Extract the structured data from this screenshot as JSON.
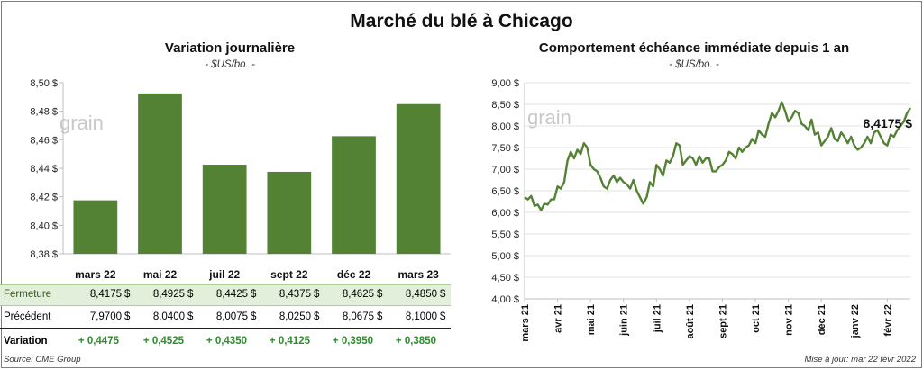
{
  "title": "Marché du blé à Chicago",
  "watermark": "grain",
  "colors": {
    "bar": "#548235",
    "line": "#548235",
    "close_row_bg": "#e2efda",
    "positive": "#2e8b2e"
  },
  "chart_data": [
    {
      "type": "bar",
      "title": "Variation journalière",
      "subtitle": "- $US/bo. -",
      "categories": [
        "mars 22",
        "mai 22",
        "juil 22",
        "sept 22",
        "déc 22",
        "mars 23"
      ],
      "values": [
        8.4175,
        8.4925,
        8.4425,
        8.4375,
        8.4625,
        8.485
      ],
      "ylim": [
        8.38,
        8.5
      ],
      "yticks": [
        "8,38 $",
        "8,40 $",
        "8,42 $",
        "8,44 $",
        "8,46 $",
        "8,48 $",
        "8,50 $"
      ],
      "ytick_values": [
        8.38,
        8.4,
        8.42,
        8.44,
        8.46,
        8.48,
        8.5
      ],
      "grid": false
    },
    {
      "type": "line",
      "title": "Comportement échéance immédiate depuis 1 an",
      "subtitle": "- $US/bo. -",
      "xticks": [
        "mars 21",
        "avr 21",
        "mai 21",
        "juin 21",
        "juil 21",
        "août 21",
        "sept 21",
        "oct 21",
        "nov 21",
        "déc 21",
        "janv 22",
        "févr 22"
      ],
      "xlim": [
        0,
        11.7
      ],
      "ylim": [
        4.0,
        9.0
      ],
      "yticks": [
        "4,00 $",
        "4,50 $",
        "5,00 $",
        "5,50 $",
        "6,00 $",
        "6,50 $",
        "7,00 $",
        "7,50 $",
        "8,00 $",
        "8,50 $",
        "9,00 $"
      ],
      "ytick_values": [
        4.0,
        4.5,
        5.0,
        5.5,
        6.0,
        6.5,
        7.0,
        7.5,
        8.0,
        8.5,
        9.0
      ],
      "grid": true,
      "last_label": "8,4175 $",
      "series": [
        {
          "x": [
            0,
            0.1,
            0.2,
            0.3,
            0.4,
            0.5,
            0.6,
            0.7,
            0.8,
            0.9,
            1.0,
            1.1,
            1.2,
            1.3,
            1.4,
            1.5,
            1.6,
            1.7,
            1.8,
            1.9,
            2.0,
            2.1,
            2.2,
            2.3,
            2.4,
            2.5,
            2.6,
            2.7,
            2.8,
            2.9,
            3.0,
            3.1,
            3.2,
            3.3,
            3.4,
            3.5,
            3.6,
            3.7,
            3.8,
            3.9,
            4.0,
            4.1,
            4.2,
            4.3,
            4.4,
            4.5,
            4.6,
            4.7,
            4.8,
            4.9,
            5.0,
            5.1,
            5.2,
            5.3,
            5.4,
            5.5,
            5.6,
            5.7,
            5.8,
            5.9,
            6.0,
            6.1,
            6.2,
            6.3,
            6.4,
            6.5,
            6.6,
            6.7,
            6.8,
            6.9,
            7.0,
            7.1,
            7.2,
            7.3,
            7.4,
            7.5,
            7.6,
            7.7,
            7.8,
            7.9,
            8.0,
            8.1,
            8.2,
            8.3,
            8.4,
            8.5,
            8.6,
            8.7,
            8.8,
            8.9,
            9.0,
            9.1,
            9.2,
            9.3,
            9.4,
            9.5,
            9.6,
            9.7,
            9.8,
            9.9,
            10.0,
            10.1,
            10.2,
            10.3,
            10.4,
            10.5,
            10.6,
            10.7,
            10.8,
            10.9,
            11.0,
            11.1,
            11.2,
            11.3,
            11.4,
            11.5,
            11.6,
            11.7
          ],
          "y": [
            6.35,
            6.3,
            6.38,
            6.15,
            6.18,
            6.05,
            6.2,
            6.18,
            6.3,
            6.3,
            6.6,
            6.55,
            6.7,
            7.2,
            7.4,
            7.25,
            7.45,
            7.35,
            7.6,
            7.5,
            7.1,
            7.0,
            6.95,
            6.8,
            6.6,
            6.55,
            6.75,
            6.85,
            6.7,
            6.8,
            6.7,
            6.65,
            6.55,
            6.75,
            6.5,
            6.35,
            6.2,
            6.35,
            6.7,
            6.6,
            7.1,
            7.0,
            6.85,
            7.2,
            7.15,
            7.3,
            7.6,
            7.55,
            7.1,
            7.2,
            7.3,
            7.25,
            7.1,
            7.3,
            7.15,
            7.25,
            7.25,
            6.95,
            6.95,
            7.05,
            7.1,
            7.2,
            7.4,
            7.35,
            7.25,
            7.5,
            7.4,
            7.5,
            7.55,
            7.7,
            7.6,
            7.9,
            7.8,
            7.75,
            8.05,
            8.3,
            8.2,
            8.35,
            8.55,
            8.35,
            8.1,
            8.2,
            8.35,
            8.3,
            8.05,
            8.0,
            7.9,
            8.15,
            7.8,
            7.85,
            7.55,
            7.65,
            7.75,
            7.95,
            7.7,
            7.65,
            7.85,
            7.75,
            7.6,
            7.75,
            7.55,
            7.45,
            7.5,
            7.6,
            7.75,
            7.6,
            7.85,
            7.9,
            7.75,
            7.6,
            7.55,
            7.8,
            7.75,
            7.9,
            8.0,
            8.1,
            8.3,
            8.4175
          ]
        }
      ]
    }
  ],
  "table": {
    "rows": [
      {
        "label": "Fermeture",
        "values": [
          "8,4175",
          "8,4925",
          "8,4425",
          "8,4375",
          "8,4625",
          "8,4850"
        ],
        "unit": "$"
      },
      {
        "label": "Précédent",
        "values": [
          "7,9700",
          "8,0400",
          "8,0075",
          "8,0250",
          "8,0675",
          "8,1000"
        ],
        "unit": "$"
      },
      {
        "label": "Variation",
        "values": [
          "+ 0,4475",
          "+ 0,4525",
          "+ 0,4350",
          "+ 0,4125",
          "+ 0,3950",
          "+ 0,3850"
        ]
      }
    ]
  },
  "footer": {
    "source": "Source: CME Group",
    "updated": "Mise à jour: mar 22 févr 2022"
  }
}
